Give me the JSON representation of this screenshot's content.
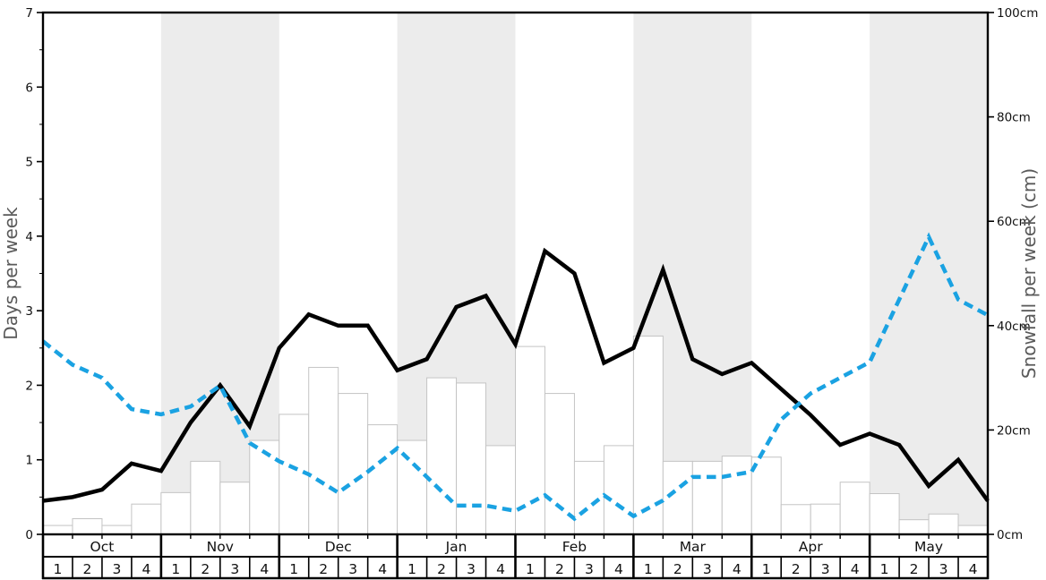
{
  "colors": {
    "background": "#ffffff",
    "band": "#ececec",
    "bar_fill": "#ffffff",
    "bar_stroke": "#c4c4c4",
    "days_line": "#000000",
    "snowfall_line": "#1aa2e2",
    "axis": "#000000",
    "tick_label": "#111111",
    "axis_title": "#5a5a5a"
  },
  "chart_data": {
    "type": "line+bar",
    "title": "",
    "left_axis": {
      "label": "Days per week",
      "min": 0,
      "max": 7,
      "tick_labels": [
        "0",
        "1",
        "2",
        "3",
        "4",
        "5",
        "6",
        "7"
      ],
      "minor_tick_step": 0.5
    },
    "right_axis": {
      "label": "Snowfall per week (cm)",
      "min": 0,
      "max": 100,
      "tick_values": [
        0,
        20,
        40,
        60,
        80,
        100
      ],
      "tick_labels": [
        "0cm",
        "20cm",
        "40cm",
        "60cm",
        "80cm",
        "100cm"
      ]
    },
    "x_axis": {
      "months": [
        "Oct",
        "Nov",
        "Dec",
        "Jan",
        "Feb",
        "Mar",
        "Apr",
        "May"
      ],
      "weeks_per_month": [
        "1",
        "2",
        "3",
        "4"
      ],
      "shaded_months": [
        "Nov",
        "Jan",
        "Mar",
        "May"
      ]
    },
    "series": [
      {
        "name": "days-per-week-line",
        "type": "line",
        "style": "solid",
        "axis": "left",
        "points_at": "week-boundaries",
        "values": [
          0.45,
          0.5,
          0.6,
          0.95,
          0.85,
          1.5,
          2.0,
          1.45,
          2.5,
          2.95,
          2.8,
          2.8,
          2.2,
          2.35,
          3.05,
          3.2,
          2.55,
          3.8,
          3.5,
          2.3,
          2.5,
          3.55,
          2.35,
          2.15,
          2.3,
          1.95,
          1.6,
          1.2,
          1.35,
          1.2,
          0.65,
          1.0,
          0.45
        ]
      },
      {
        "name": "snowfall-per-week-line",
        "type": "line",
        "style": "dashed",
        "axis": "right",
        "points_at": "week-boundaries",
        "values": [
          37,
          32.5,
          30,
          24,
          23,
          24.5,
          28.5,
          17.5,
          14,
          11.5,
          8,
          12,
          16.5,
          11,
          5.5,
          5.5,
          4.5,
          7.5,
          3,
          7.5,
          3.5,
          6.5,
          11,
          11,
          12,
          22,
          27,
          30,
          33,
          45,
          57,
          45,
          42
        ]
      },
      {
        "name": "snowfall-per-week-bars",
        "type": "bar",
        "axis": "right",
        "values": [
          1.7,
          3,
          1.7,
          5.8,
          8,
          14,
          10,
          18,
          23,
          32,
          27,
          21,
          18,
          30,
          29,
          17,
          36,
          27,
          14,
          17,
          38,
          14,
          14,
          15,
          14.8,
          5.7,
          5.8,
          10,
          7.8,
          2.8,
          3.9,
          1.7
        ]
      }
    ]
  }
}
